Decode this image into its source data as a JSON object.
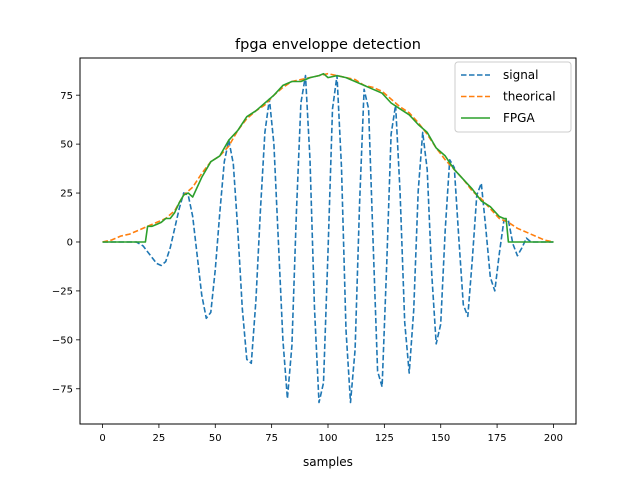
{
  "chart_data": {
    "type": "line",
    "title": "fpga enveloppe detection",
    "xlabel": "samples",
    "ylabel": "",
    "xlim": [
      -10,
      210
    ],
    "ylim": [
      -93,
      94
    ],
    "xticks": [
      0,
      25,
      50,
      75,
      100,
      125,
      150,
      175,
      200
    ],
    "yticks": [
      -75,
      -50,
      -25,
      0,
      25,
      50,
      75
    ],
    "grid": false,
    "legend_position": "top-right",
    "series": [
      {
        "name": "signal",
        "color": "#1f77b4",
        "style": "dashed",
        "x": [
          0,
          15,
          18,
          20,
          22,
          24,
          26,
          28,
          30,
          32,
          34,
          36,
          38,
          40,
          42,
          44,
          46,
          48,
          50,
          52,
          54,
          56,
          58,
          60,
          62,
          64,
          66,
          68,
          70,
          72,
          74,
          76,
          78,
          80,
          82,
          84,
          86,
          88,
          90,
          92,
          94,
          96,
          98,
          100,
          102,
          104,
          106,
          108,
          110,
          112,
          114,
          116,
          118,
          120,
          122,
          124,
          126,
          128,
          130,
          132,
          134,
          136,
          138,
          140,
          142,
          144,
          146,
          148,
          150,
          152,
          154,
          156,
          158,
          160,
          162,
          164,
          166,
          168,
          170,
          172,
          174,
          176,
          178,
          180,
          182,
          184,
          186,
          188,
          190,
          192,
          194,
          196,
          198,
          200
        ],
        "y": [
          0,
          0,
          -2,
          -5,
          -8,
          -11,
          -12,
          -10,
          -3,
          7,
          17,
          25,
          24,
          13,
          -7,
          -27,
          -39,
          -36,
          -14,
          15,
          41,
          52,
          40,
          6,
          -34,
          -60,
          -62,
          -30,
          16,
          56,
          73,
          50,
          0,
          -50,
          -80,
          -53,
          15,
          71,
          85,
          42,
          -34,
          -82,
          -72,
          -5,
          68,
          85,
          38,
          -45,
          -82,
          -55,
          20,
          78,
          68,
          0,
          -66,
          -74,
          -13,
          55,
          70,
          25,
          -41,
          -67,
          -35,
          26,
          56,
          37,
          -16,
          -52,
          -42,
          6,
          42,
          38,
          2,
          -32,
          -38,
          -9,
          24,
          30,
          7,
          -18,
          -25,
          -6,
          11,
          11,
          -1,
          -7,
          -3,
          2,
          0,
          0,
          0,
          0,
          0,
          0
        ]
      },
      {
        "name": "theorical",
        "color": "#ff7f0e",
        "style": "dashed",
        "x": [
          0,
          4,
          8,
          12,
          16,
          20,
          24,
          28,
          32,
          36,
          40,
          44,
          48,
          52,
          56,
          60,
          64,
          68,
          72,
          76,
          80,
          84,
          88,
          92,
          96,
          100,
          104,
          108,
          112,
          116,
          120,
          124,
          128,
          132,
          136,
          140,
          144,
          148,
          152,
          156,
          160,
          164,
          168,
          172,
          176,
          180,
          184,
          188,
          192,
          196,
          200
        ],
        "y": [
          0,
          1,
          3,
          4,
          6,
          8,
          10,
          12,
          16,
          24,
          28,
          35,
          41,
          44,
          49,
          57,
          63,
          67,
          70,
          75,
          79,
          82,
          83,
          84,
          85,
          86,
          85,
          84,
          83,
          80,
          79,
          77,
          73,
          69,
          66,
          61,
          55,
          48,
          42,
          37,
          32,
          26,
          22,
          17,
          12,
          10,
          7,
          5,
          3,
          1,
          0
        ]
      },
      {
        "name": "FPGA",
        "color": "#2ca02c",
        "style": "solid",
        "x": [
          0,
          18,
          19,
          20,
          22,
          24,
          26,
          28,
          30,
          32,
          34,
          36,
          38,
          40,
          44,
          48,
          52,
          56,
          60,
          64,
          68,
          72,
          76,
          80,
          84,
          88,
          92,
          96,
          98,
          100,
          104,
          108,
          112,
          116,
          120,
          124,
          128,
          132,
          136,
          140,
          144,
          148,
          152,
          156,
          160,
          164,
          168,
          172,
          176,
          178,
          179,
          180,
          184,
          188,
          192,
          196,
          198,
          200
        ],
        "y": [
          0,
          0,
          0,
          8,
          8,
          9,
          10,
          12,
          12,
          15,
          20,
          24,
          25,
          23,
          33,
          41,
          44,
          52,
          57,
          64,
          67,
          71,
          75,
          80,
          82,
          82,
          84,
          85,
          86,
          84,
          85,
          84,
          82,
          80,
          78,
          76,
          71,
          68,
          65,
          60,
          56,
          48,
          44,
          37,
          32,
          27,
          21,
          18,
          13,
          12,
          12,
          0,
          0,
          0,
          0,
          0,
          0,
          0
        ]
      }
    ]
  }
}
